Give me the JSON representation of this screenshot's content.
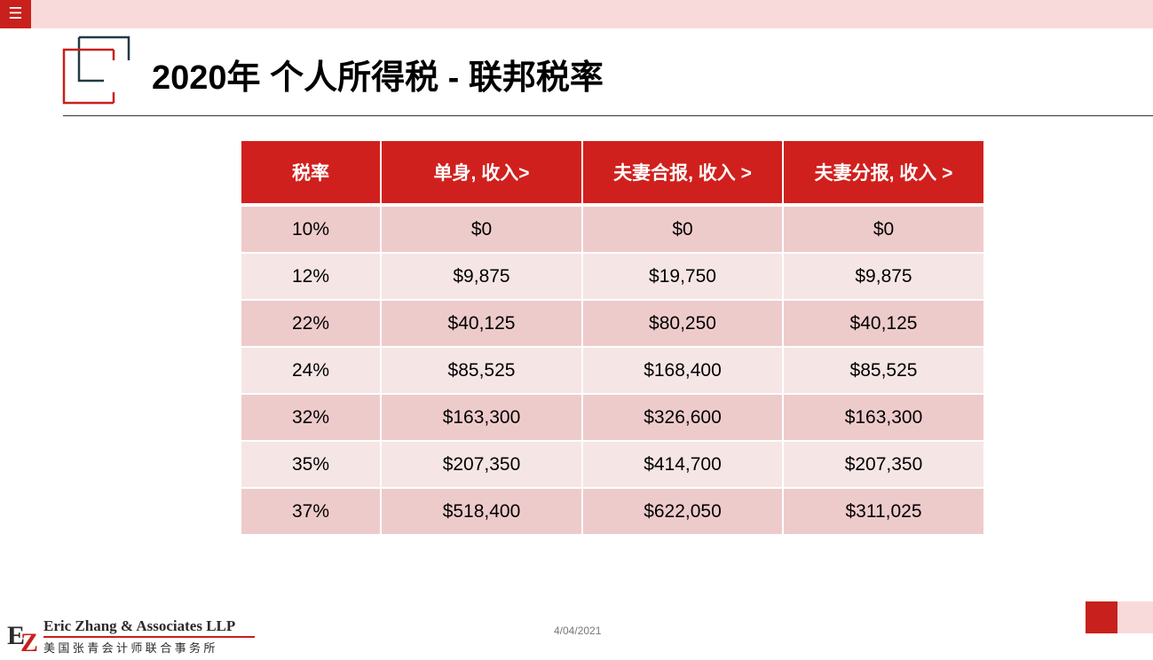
{
  "menu": {
    "icon": "hamburger-icon",
    "glyph": "☰"
  },
  "slide": {
    "title": "2020年 个人所得税 - 联邦税率",
    "date": "4/04/2021"
  },
  "table": {
    "headers": [
      "税率",
      "单身, 收入>",
      "夫妻合报, 收入 >",
      "夫妻分报, 收入 >"
    ],
    "rows": [
      [
        "10%",
        "$0",
        "$0",
        "$0"
      ],
      [
        "12%",
        "$9,875",
        "$19,750",
        "$9,875"
      ],
      [
        "22%",
        "$40,125",
        "$80,250",
        "$40,125"
      ],
      [
        "24%",
        "$85,525",
        "$168,400",
        "$85,525"
      ],
      [
        "32%",
        "$163,300",
        "$326,600",
        "$163,300"
      ],
      [
        "35%",
        "$207,350",
        "$414,700",
        "$207,350"
      ],
      [
        "37%",
        "$518,400",
        "$622,050",
        "$311,025"
      ]
    ]
  },
  "footer": {
    "company_name": "Eric Zhang & Associates LLP",
    "company_name_cn": "美国张青会计师联合事务所",
    "logo_letters": "EZ"
  },
  "colors": {
    "accent": "#c8201c",
    "header_bg": "#d0201d",
    "row_dark": "#eecbcb",
    "row_light": "#f6e5e5",
    "topbar": "#f9dada"
  }
}
